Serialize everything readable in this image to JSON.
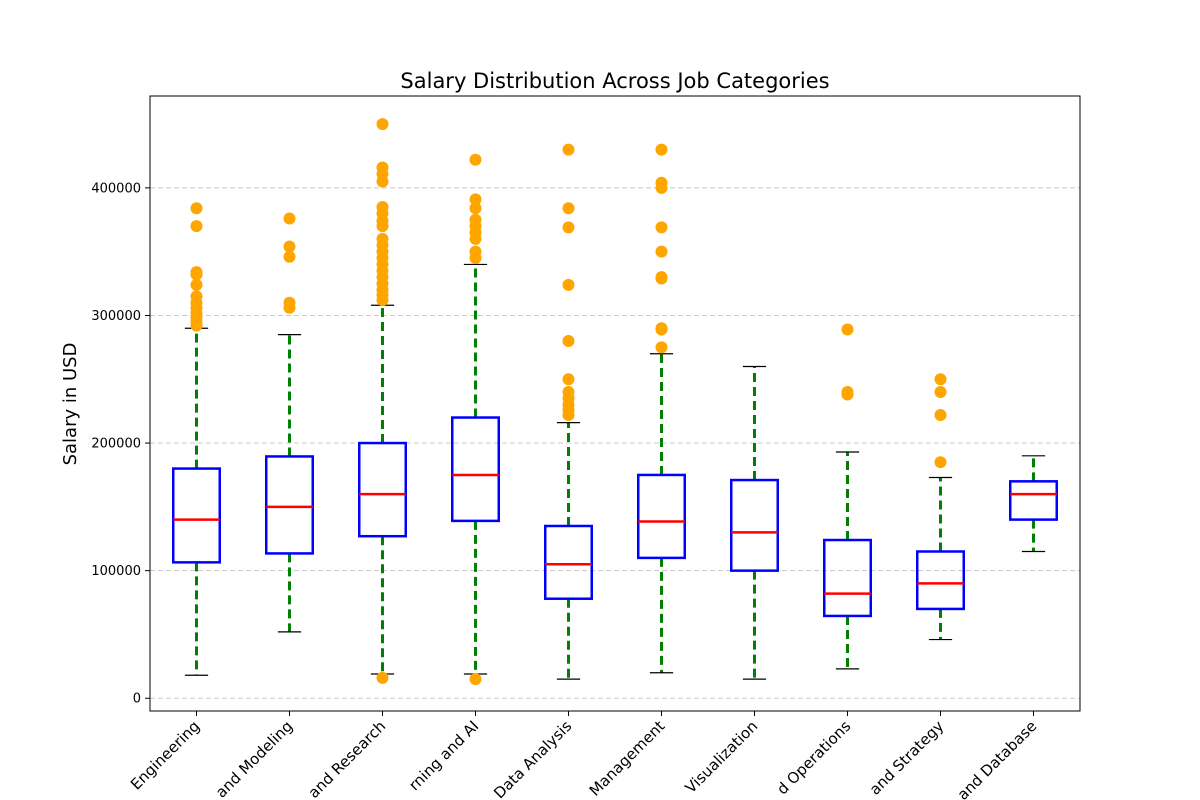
{
  "chart_data": {
    "type": "box",
    "title": "Salary Distribution Across Job Categories",
    "xlabel": "",
    "ylabel": "Salary in USD",
    "ylim": [
      -10000,
      472000
    ],
    "yticks": [
      0,
      100000,
      200000,
      300000,
      400000
    ],
    "grid": "y-dashed",
    "colors": {
      "box": "#0000ff",
      "median": "#ff0000",
      "whisker": "#008000",
      "cap": "#000000",
      "flier": "#ffa500",
      "grid": "#c8c8c8"
    },
    "categories": [
      "Engineering",
      "and Modeling",
      "and Research",
      "rning and AI",
      "Data Analysis",
      "Management",
      "Visualization",
      "d Operations",
      "and Strategy",
      "and Database"
    ],
    "boxes": [
      {
        "whislo": 18000,
        "q1": 106500,
        "med": 140000,
        "q3": 180000,
        "whishi": 290000,
        "fliers": [
          384000,
          370000,
          334000,
          332000,
          324000,
          315000,
          310000,
          306000,
          302000,
          298000,
          295000,
          292000
        ]
      },
      {
        "whislo": 52000,
        "q1": 113500,
        "med": 150000,
        "q3": 189500,
        "whishi": 285000,
        "fliers": [
          376000,
          354000,
          346000,
          310000,
          306000
        ]
      },
      {
        "whislo": 19000,
        "q1": 127000,
        "med": 160000,
        "q3": 200000,
        "whishi": 308000,
        "fliers": [
          16000,
          450000,
          416000,
          411000,
          405000,
          385000,
          380000,
          374000,
          370000,
          360000,
          355000,
          350000,
          345000,
          340000,
          335000,
          330000,
          325000,
          320000,
          316000,
          312000
        ]
      },
      {
        "whislo": 19000,
        "q1": 139000,
        "med": 175000,
        "q3": 220000,
        "whishi": 340000,
        "fliers": [
          15000,
          422000,
          391000,
          384000,
          375000,
          370000,
          365000,
          360000,
          350000,
          345000
        ]
      },
      {
        "whislo": 15000,
        "q1": 78000,
        "med": 105000,
        "q3": 135000,
        "whishi": 216000,
        "fliers": [
          430000,
          384000,
          369000,
          324000,
          280000,
          250000,
          240000,
          235000,
          230000,
          226000,
          222000
        ]
      },
      {
        "whislo": 20000,
        "q1": 110000,
        "med": 138500,
        "q3": 175000,
        "whishi": 270000,
        "fliers": [
          430000,
          404000,
          400000,
          369000,
          350000,
          330000,
          329000,
          290000,
          289000,
          275000
        ]
      },
      {
        "whislo": 15000,
        "q1": 100000,
        "med": 130000,
        "q3": 171000,
        "whishi": 260000,
        "fliers": []
      },
      {
        "whislo": 23000,
        "q1": 64500,
        "med": 82000,
        "q3": 124000,
        "whishi": 193000,
        "fliers": [
          289000,
          240000,
          238000
        ]
      },
      {
        "whislo": 46000,
        "q1": 70000,
        "med": 90000,
        "q3": 115000,
        "whishi": 173000,
        "fliers": [
          250000,
          240000,
          222000,
          185000
        ]
      },
      {
        "whislo": 115000,
        "q1": 140000,
        "med": 160000,
        "q3": 170000,
        "whishi": 190000,
        "fliers": []
      }
    ]
  }
}
